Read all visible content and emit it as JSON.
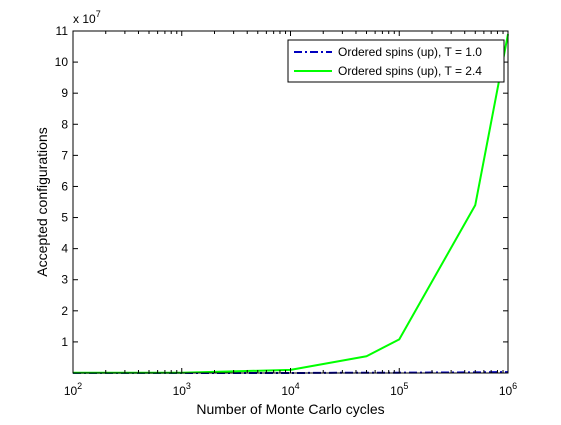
{
  "chart_data": {
    "type": "line",
    "xscale": "log",
    "xlabel": "Number of Monte Carlo cycles",
    "ylabel": "Accepted configurations",
    "ylabel_multiplier": {
      "base": "x 10",
      "exponent": "7"
    },
    "xlim": [
      100,
      1000000
    ],
    "ylim": [
      0,
      11
    ],
    "y_multiplier_value": 10000000,
    "xticks": [
      {
        "value": 100,
        "base": "10",
        "exp": "2"
      },
      {
        "value": 1000,
        "base": "10",
        "exp": "3"
      },
      {
        "value": 10000,
        "base": "10",
        "exp": "4"
      },
      {
        "value": 100000,
        "base": "10",
        "exp": "5"
      },
      {
        "value": 1000000,
        "base": "10",
        "exp": "6"
      }
    ],
    "yticks": [
      "1",
      "2",
      "3",
      "4",
      "5",
      "6",
      "7",
      "8",
      "9",
      "10",
      "11"
    ],
    "grid": false,
    "legend_position": "top-right",
    "series": [
      {
        "name": "Ordered spins (up), T = 1.0",
        "color": "#0000bf",
        "style": "dashdot",
        "x": [
          100,
          1000,
          10000,
          50000,
          100000,
          500000,
          1000000
        ],
        "y": [
          0.0,
          0.0,
          0.0,
          0.01,
          0.01,
          0.02,
          0.03
        ]
      },
      {
        "name": "Ordered spins (up), T = 2.4",
        "color": "#00ff00",
        "style": "solid",
        "x": [
          100,
          1000,
          10000,
          50000,
          100000,
          500000,
          1000000
        ],
        "y": [
          0.01,
          0.01,
          0.1,
          0.54,
          1.08,
          5.4,
          10.9
        ]
      }
    ]
  }
}
